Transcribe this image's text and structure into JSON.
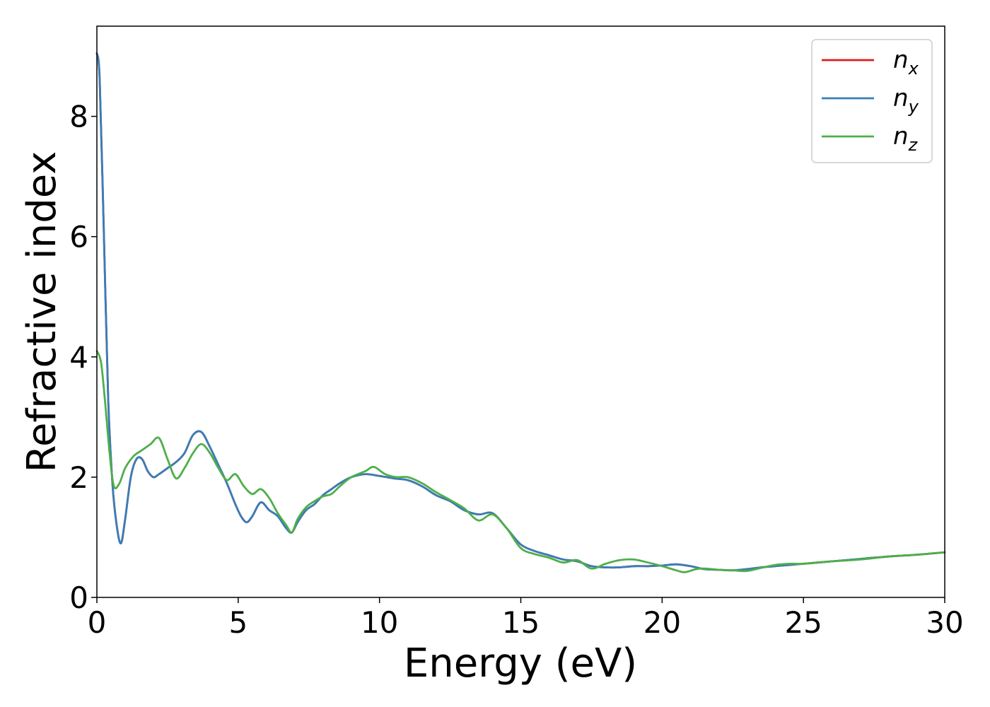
{
  "chart_data": {
    "type": "line",
    "title": "",
    "xlabel": "Energy (eV)",
    "ylabel": "Refractive index",
    "xlim": [
      0,
      30
    ],
    "ylim": [
      0,
      9.5
    ],
    "xticks": [
      0,
      5,
      10,
      15,
      20,
      25,
      30
    ],
    "yticks": [
      0,
      2,
      4,
      6,
      8
    ],
    "grid": false,
    "legend_position": "top-right",
    "series": [
      {
        "name": "n",
        "subscript": "x",
        "color": "#e41a1c",
        "x": [
          0,
          0.1,
          0.25,
          0.4,
          0.55,
          0.7,
          0.85,
          1.0,
          1.2,
          1.4,
          1.6,
          1.8,
          2.0,
          2.2,
          2.5,
          2.8,
          3.1,
          3.4,
          3.7,
          4.0,
          4.3,
          4.6,
          4.9,
          5.1,
          5.3,
          5.5,
          5.8,
          6.1,
          6.4,
          6.7,
          6.9,
          7.1,
          7.4,
          7.7,
          8.0,
          8.3,
          8.6,
          9.0,
          9.5,
          10.0,
          10.5,
          11.0,
          11.5,
          12.0,
          12.5,
          13.0,
          13.5,
          14.0,
          14.5,
          15.0,
          15.5,
          16.0,
          16.5,
          17.0,
          17.5,
          18.0,
          18.5,
          19.0,
          19.5,
          20.0,
          20.5,
          21.0,
          21.5,
          22.0,
          22.5,
          23.0,
          23.5,
          24.0,
          24.5,
          25.0,
          26.0,
          27.0,
          28.0,
          29.0,
          30.0
        ],
        "y": [
          9.05,
          8.6,
          6.0,
          3.3,
          1.9,
          1.2,
          0.9,
          1.3,
          2.0,
          2.3,
          2.3,
          2.1,
          2.0,
          2.05,
          2.15,
          2.25,
          2.4,
          2.7,
          2.75,
          2.5,
          2.2,
          1.9,
          1.55,
          1.35,
          1.25,
          1.35,
          1.58,
          1.45,
          1.35,
          1.15,
          1.08,
          1.25,
          1.45,
          1.55,
          1.7,
          1.8,
          1.9,
          2.0,
          2.05,
          2.02,
          1.98,
          1.95,
          1.85,
          1.7,
          1.6,
          1.45,
          1.38,
          1.4,
          1.15,
          0.88,
          0.77,
          0.7,
          0.63,
          0.6,
          0.52,
          0.5,
          0.5,
          0.52,
          0.52,
          0.53,
          0.55,
          0.52,
          0.47,
          0.46,
          0.45,
          0.47,
          0.5,
          0.52,
          0.54,
          0.56,
          0.6,
          0.64,
          0.68,
          0.71,
          0.75
        ]
      },
      {
        "name": "n",
        "subscript": "y",
        "color": "#377eb8",
        "x": [
          0,
          0.1,
          0.25,
          0.4,
          0.55,
          0.7,
          0.85,
          1.0,
          1.2,
          1.4,
          1.6,
          1.8,
          2.0,
          2.2,
          2.5,
          2.8,
          3.1,
          3.4,
          3.7,
          4.0,
          4.3,
          4.6,
          4.9,
          5.1,
          5.3,
          5.5,
          5.8,
          6.1,
          6.4,
          6.7,
          6.9,
          7.1,
          7.4,
          7.7,
          8.0,
          8.3,
          8.6,
          9.0,
          9.5,
          10.0,
          10.5,
          11.0,
          11.5,
          12.0,
          12.5,
          13.0,
          13.5,
          14.0,
          14.5,
          15.0,
          15.5,
          16.0,
          16.5,
          17.0,
          17.5,
          18.0,
          18.5,
          19.0,
          19.5,
          20.0,
          20.5,
          21.0,
          21.5,
          22.0,
          22.5,
          23.0,
          23.5,
          24.0,
          24.5,
          25.0,
          26.0,
          27.0,
          28.0,
          29.0,
          30.0
        ],
        "y": [
          9.05,
          8.6,
          6.0,
          3.3,
          1.9,
          1.2,
          0.9,
          1.3,
          2.0,
          2.3,
          2.3,
          2.1,
          2.0,
          2.05,
          2.15,
          2.25,
          2.4,
          2.7,
          2.75,
          2.5,
          2.2,
          1.9,
          1.55,
          1.35,
          1.25,
          1.35,
          1.58,
          1.45,
          1.35,
          1.15,
          1.08,
          1.25,
          1.45,
          1.55,
          1.7,
          1.8,
          1.9,
          2.0,
          2.05,
          2.02,
          1.98,
          1.95,
          1.85,
          1.7,
          1.6,
          1.45,
          1.38,
          1.4,
          1.15,
          0.88,
          0.77,
          0.7,
          0.63,
          0.6,
          0.52,
          0.5,
          0.5,
          0.52,
          0.52,
          0.53,
          0.55,
          0.52,
          0.47,
          0.46,
          0.45,
          0.47,
          0.5,
          0.52,
          0.54,
          0.56,
          0.6,
          0.64,
          0.68,
          0.71,
          0.75
        ]
      },
      {
        "name": "n",
        "subscript": "z",
        "color": "#4daf4a",
        "x": [
          0,
          0.15,
          0.3,
          0.45,
          0.6,
          0.8,
          1.0,
          1.3,
          1.6,
          1.9,
          2.2,
          2.5,
          2.8,
          3.1,
          3.4,
          3.7,
          4.0,
          4.3,
          4.6,
          4.9,
          5.2,
          5.5,
          5.8,
          6.1,
          6.4,
          6.7,
          6.9,
          7.1,
          7.4,
          7.7,
          8.0,
          8.3,
          8.6,
          9.0,
          9.5,
          9.8,
          10.2,
          10.6,
          11.0,
          11.5,
          12.0,
          12.5,
          13.0,
          13.5,
          14.0,
          14.5,
          15.0,
          15.5,
          16.0,
          16.5,
          17.0,
          17.5,
          18.0,
          18.5,
          19.0,
          19.5,
          20.0,
          20.5,
          20.8,
          21.2,
          21.5,
          22.0,
          22.5,
          23.0,
          23.5,
          24.0,
          24.5,
          25.0,
          26.0,
          27.0,
          28.0,
          29.0,
          30.0
        ],
        "y": [
          4.1,
          3.9,
          3.2,
          2.4,
          1.85,
          1.9,
          2.15,
          2.35,
          2.45,
          2.55,
          2.65,
          2.3,
          1.98,
          2.15,
          2.4,
          2.55,
          2.4,
          2.15,
          1.95,
          2.05,
          1.85,
          1.72,
          1.8,
          1.65,
          1.4,
          1.2,
          1.08,
          1.3,
          1.5,
          1.6,
          1.68,
          1.72,
          1.85,
          2.0,
          2.1,
          2.17,
          2.05,
          2.0,
          2.0,
          1.9,
          1.75,
          1.62,
          1.48,
          1.28,
          1.38,
          1.15,
          0.82,
          0.72,
          0.66,
          0.58,
          0.62,
          0.48,
          0.56,
          0.62,
          0.63,
          0.58,
          0.52,
          0.45,
          0.42,
          0.47,
          0.48,
          0.46,
          0.45,
          0.44,
          0.49,
          0.54,
          0.56,
          0.56,
          0.6,
          0.63,
          0.68,
          0.71,
          0.75
        ]
      }
    ]
  }
}
